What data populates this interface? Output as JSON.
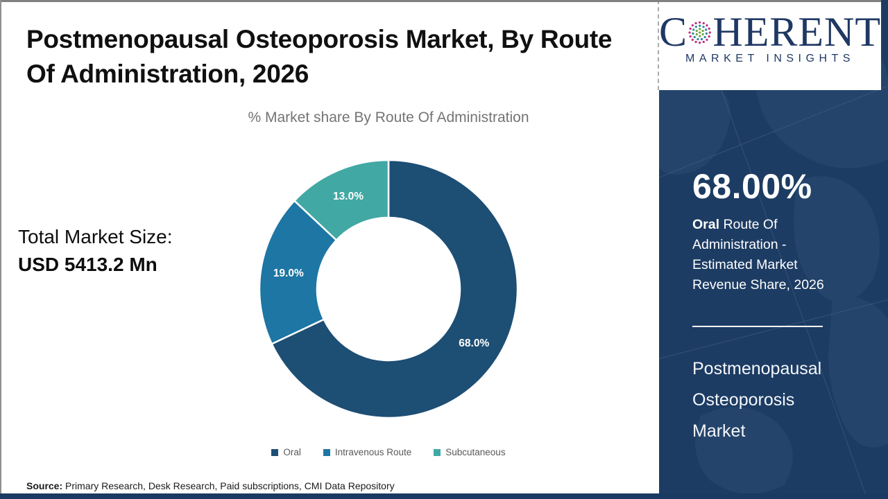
{
  "header": {
    "title_line1": "Postmenopausal Osteoporosis Market, By Route",
    "title_line2": "Of Administration, 2026"
  },
  "logo": {
    "c": "C",
    "rest": "HERENT",
    "tagline": "MARKET INSIGHTS",
    "navy": "#1f3864",
    "globe_colors": [
      "#6aa63e",
      "#2e86a3",
      "#c22f7c"
    ]
  },
  "left_panel": {
    "total_label": "Total Market Size:",
    "total_value": "USD 5413.2 Mn"
  },
  "chart_data": {
    "type": "pie",
    "donut": true,
    "title": "% Market share By Route Of Administration",
    "categories": [
      "Oral",
      "Intravenous Route",
      "Subcutaneous"
    ],
    "values": [
      68.0,
      19.0,
      13.0
    ],
    "labels": [
      "68.0%",
      "19.0%",
      "13.0%"
    ],
    "colors": [
      "#1d4e74",
      "#1d76a4",
      "#41a8a4"
    ],
    "start_angle_deg": 0,
    "direction": "clockwise",
    "legend_position": "bottom"
  },
  "sidebar": {
    "highlight_value": "68.00%",
    "highlight_lead": "Oral",
    "highlight_rest": " Route Of Administration - Estimated Market Revenue Share, 2026",
    "market_name": "Postmenopausal Osteoporosis Market",
    "bg": "#1d3c63"
  },
  "footer": {
    "source_label": "Source:",
    "source_text": " Primary Research, Desk Research, Paid subscriptions, CMI Data Repository"
  }
}
